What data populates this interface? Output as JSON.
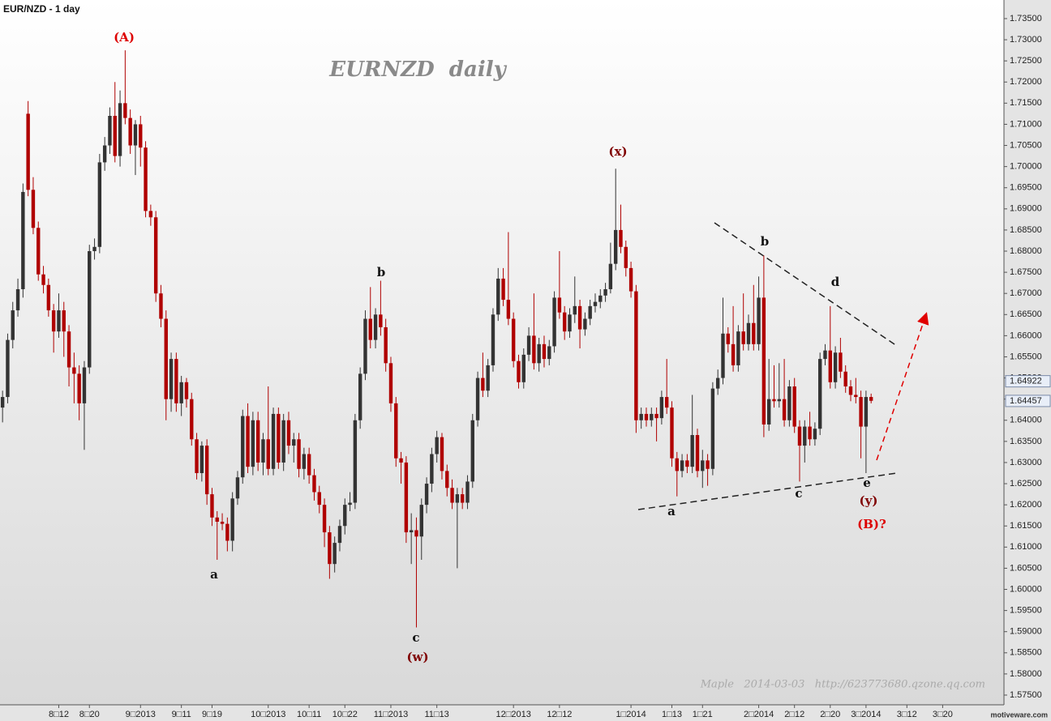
{
  "chart_data": {
    "type": "candlestick",
    "title": "EUR/NZD - 1 day",
    "annotations": [
      "EURNZD  daily",
      "(A)",
      "(x)",
      "b",
      "a",
      "c",
      "(w)",
      "b",
      "d",
      "a",
      "c",
      "e",
      "(y)",
      "(B)?"
    ],
    "footer": "Maple   2014-03-03   http://623773680.qzone.qq.com",
    "brand": "motiveware.com",
    "up_color": "#333333",
    "down_color": "#b00000",
    "xlim": [
      -0.5,
      196
    ],
    "xticks": [
      {
        "value": 11,
        "label": "8□12"
      },
      {
        "value": 17,
        "label": "8□20"
      },
      {
        "value": 27,
        "label": "9□2013"
      },
      {
        "value": 35,
        "label": "9□11"
      },
      {
        "value": 41,
        "label": "9□19"
      },
      {
        "value": 52,
        "label": "10□2013"
      },
      {
        "value": 60,
        "label": "10□11"
      },
      {
        "value": 67,
        "label": "10□22"
      },
      {
        "value": 76,
        "label": "11□2013"
      },
      {
        "value": 85,
        "label": "11□13"
      },
      {
        "value": 100,
        "label": "12□2013"
      },
      {
        "value": 109,
        "label": "12□12"
      },
      {
        "value": 123,
        "label": "1□2014"
      },
      {
        "value": 131,
        "label": "1□13"
      },
      {
        "value": 137,
        "label": "1□21"
      },
      {
        "value": 148,
        "label": "2□2014"
      },
      {
        "value": 155,
        "label": "2□12"
      },
      {
        "value": 162,
        "label": "2□20"
      },
      {
        "value": 169,
        "label": "3□2014"
      },
      {
        "value": 177,
        "label": "3□12"
      },
      {
        "value": 184,
        "label": "3□20"
      }
    ],
    "ylim": [
      1.5727,
      1.7394
    ],
    "yticks": [
      {
        "value": 1.575,
        "label": "1.57500"
      },
      {
        "value": 1.58,
        "label": "1.58000"
      },
      {
        "value": 1.585,
        "label": "1.58500"
      },
      {
        "value": 1.59,
        "label": "1.59000"
      },
      {
        "value": 1.595,
        "label": "1.59500"
      },
      {
        "value": 1.6,
        "label": "1.60000"
      },
      {
        "value": 1.605,
        "label": "1.60500"
      },
      {
        "value": 1.61,
        "label": "1.61000"
      },
      {
        "value": 1.615,
        "label": "1.61500"
      },
      {
        "value": 1.62,
        "label": "1.62000"
      },
      {
        "value": 1.625,
        "label": "1.62500"
      },
      {
        "value": 1.63,
        "label": "1.63000"
      },
      {
        "value": 1.635,
        "label": "1.63500"
      },
      {
        "value": 1.64,
        "label": "1.64000"
      },
      {
        "value": 1.645,
        "label": "1.64500"
      },
      {
        "value": 1.65,
        "label": "1.65000"
      },
      {
        "value": 1.655,
        "label": "1.65500"
      },
      {
        "value": 1.66,
        "label": "1.66000"
      },
      {
        "value": 1.665,
        "label": "1.66500"
      },
      {
        "value": 1.67,
        "label": "1.67000"
      },
      {
        "value": 1.675,
        "label": "1.67500"
      },
      {
        "value": 1.68,
        "label": "1.68000"
      },
      {
        "value": 1.685,
        "label": "1.68500"
      },
      {
        "value": 1.69,
        "label": "1.69000"
      },
      {
        "value": 1.695,
        "label": "1.69500"
      },
      {
        "value": 1.7,
        "label": "1.70000"
      },
      {
        "value": 1.705,
        "label": "1.70500"
      },
      {
        "value": 1.71,
        "label": "1.71000"
      },
      {
        "value": 1.715,
        "label": "1.71500"
      },
      {
        "value": 1.72,
        "label": "1.72000"
      },
      {
        "value": 1.725,
        "label": "1.72500"
      },
      {
        "value": 1.73,
        "label": "1.73000"
      },
      {
        "value": 1.735,
        "label": "1.73500"
      }
    ],
    "price_markers": [
      {
        "value": 1.64922,
        "label": "1.64922"
      },
      {
        "value": 1.64457,
        "label": "1.64457"
      }
    ],
    "ohlc": [
      [
        1.643,
        1.647,
        1.6395,
        1.6455
      ],
      [
        1.6455,
        1.6605,
        1.644,
        1.659
      ],
      [
        1.659,
        1.668,
        1.657,
        1.666
      ],
      [
        1.666,
        1.6735,
        1.6645,
        1.671
      ],
      [
        1.671,
        1.696,
        1.669,
        1.694
      ],
      [
        1.7125,
        1.7155,
        1.693,
        1.6945
      ],
      [
        1.6945,
        1.6975,
        1.684,
        1.6855
      ],
      [
        1.6855,
        1.687,
        1.673,
        1.6745
      ],
      [
        1.6745,
        1.6765,
        1.67,
        1.672
      ],
      [
        1.672,
        1.6735,
        1.6645,
        1.666
      ],
      [
        1.666,
        1.6675,
        1.656,
        1.661
      ],
      [
        1.661,
        1.67,
        1.6595,
        1.666
      ],
      [
        1.666,
        1.668,
        1.655,
        1.661
      ],
      [
        1.661,
        1.6625,
        1.648,
        1.6525
      ],
      [
        1.6525,
        1.656,
        1.644,
        1.651
      ],
      [
        1.651,
        1.653,
        1.64,
        1.644
      ],
      [
        1.644,
        1.654,
        1.633,
        1.6525
      ],
      [
        1.6525,
        1.6815,
        1.651,
        1.68
      ],
      [
        1.68,
        1.683,
        1.678,
        1.681
      ],
      [
        1.681,
        1.703,
        1.6795,
        1.701
      ],
      [
        1.701,
        1.707,
        1.699,
        1.705
      ],
      [
        1.705,
        1.714,
        1.703,
        1.712
      ],
      [
        1.712,
        1.72,
        1.701,
        1.7025
      ],
      [
        1.7025,
        1.718,
        1.7,
        1.715
      ],
      [
        1.715,
        1.7275,
        1.71,
        1.7115
      ],
      [
        1.7115,
        1.7135,
        1.703,
        1.705
      ],
      [
        1.705,
        1.711,
        1.698,
        1.71
      ],
      [
        1.71,
        1.712,
        1.7,
        1.7045
      ],
      [
        1.7045,
        1.706,
        1.688,
        1.6895
      ],
      [
        1.6895,
        1.691,
        1.686,
        1.688
      ],
      [
        1.688,
        1.6895,
        1.668,
        1.67
      ],
      [
        1.67,
        1.672,
        1.662,
        1.664
      ],
      [
        1.664,
        1.666,
        1.64,
        1.645
      ],
      [
        1.645,
        1.656,
        1.642,
        1.6545
      ],
      [
        1.6545,
        1.656,
        1.642,
        1.644
      ],
      [
        1.644,
        1.6505,
        1.641,
        1.649
      ],
      [
        1.649,
        1.65,
        1.643,
        1.645
      ],
      [
        1.645,
        1.6465,
        1.634,
        1.6355
      ],
      [
        1.6355,
        1.637,
        1.626,
        1.6275
      ],
      [
        1.6275,
        1.635,
        1.6255,
        1.634
      ],
      [
        1.634,
        1.6355,
        1.62,
        1.6225
      ],
      [
        1.6225,
        1.624,
        1.615,
        1.617
      ],
      [
        1.617,
        1.6185,
        1.607,
        1.616
      ],
      [
        1.616,
        1.618,
        1.614,
        1.6155
      ],
      [
        1.6155,
        1.617,
        1.609,
        1.6115
      ],
      [
        1.6115,
        1.623,
        1.609,
        1.6215
      ],
      [
        1.6215,
        1.628,
        1.62,
        1.6265
      ],
      [
        1.6265,
        1.6425,
        1.625,
        1.641
      ],
      [
        1.641,
        1.644,
        1.6275,
        1.629
      ],
      [
        1.629,
        1.642,
        1.627,
        1.64
      ],
      [
        1.64,
        1.642,
        1.628,
        1.63
      ],
      [
        1.63,
        1.637,
        1.627,
        1.6355
      ],
      [
        1.6355,
        1.648,
        1.627,
        1.6285
      ],
      [
        1.6285,
        1.643,
        1.627,
        1.6415
      ],
      [
        1.6415,
        1.643,
        1.6285,
        1.63
      ],
      [
        1.63,
        1.6415,
        1.628,
        1.64
      ],
      [
        1.64,
        1.642,
        1.632,
        1.634
      ],
      [
        1.634,
        1.637,
        1.63,
        1.6355
      ],
      [
        1.6355,
        1.637,
        1.6265,
        1.6285
      ],
      [
        1.6285,
        1.6335,
        1.626,
        1.632
      ],
      [
        1.632,
        1.6335,
        1.625,
        1.627
      ],
      [
        1.627,
        1.6285,
        1.621,
        1.623
      ],
      [
        1.623,
        1.6245,
        1.618,
        1.62
      ],
      [
        1.62,
        1.6215,
        1.61,
        1.6135
      ],
      [
        1.6135,
        1.615,
        1.6025,
        1.606
      ],
      [
        1.606,
        1.6125,
        1.604,
        1.611
      ],
      [
        1.611,
        1.6165,
        1.609,
        1.615
      ],
      [
        1.615,
        1.6215,
        1.613,
        1.62
      ],
      [
        1.62,
        1.623,
        1.6185,
        1.6205
      ],
      [
        1.6205,
        1.6415,
        1.619,
        1.64
      ],
      [
        1.64,
        1.6525,
        1.638,
        1.651
      ],
      [
        1.651,
        1.666,
        1.6495,
        1.664
      ],
      [
        1.664,
        1.6715,
        1.657,
        1.659
      ],
      [
        1.659,
        1.6665,
        1.657,
        1.665
      ],
      [
        1.665,
        1.673,
        1.66,
        1.662
      ],
      [
        1.662,
        1.664,
        1.6515,
        1.6535
      ],
      [
        1.6535,
        1.655,
        1.642,
        1.644
      ],
      [
        1.644,
        1.6455,
        1.629,
        1.631
      ],
      [
        1.631,
        1.6325,
        1.625,
        1.63
      ],
      [
        1.63,
        1.6315,
        1.611,
        1.6135
      ],
      [
        1.6135,
        1.618,
        1.606,
        1.614
      ],
      [
        1.614,
        1.617,
        1.591,
        1.6125
      ],
      [
        1.6125,
        1.6215,
        1.607,
        1.62
      ],
      [
        1.62,
        1.6265,
        1.618,
        1.625
      ],
      [
        1.625,
        1.6335,
        1.623,
        1.632
      ],
      [
        1.632,
        1.6375,
        1.63,
        1.636
      ],
      [
        1.636,
        1.637,
        1.626,
        1.628
      ],
      [
        1.628,
        1.6295,
        1.622,
        1.624
      ],
      [
        1.624,
        1.626,
        1.619,
        1.6205
      ],
      [
        1.6205,
        1.624,
        1.605,
        1.6225
      ],
      [
        1.6225,
        1.624,
        1.619,
        1.6205
      ],
      [
        1.6205,
        1.627,
        1.619,
        1.6255
      ],
      [
        1.6255,
        1.6415,
        1.624,
        1.64
      ],
      [
        1.64,
        1.6515,
        1.6385,
        1.65
      ],
      [
        1.65,
        1.656,
        1.6455,
        1.647
      ],
      [
        1.647,
        1.6545,
        1.6455,
        1.653
      ],
      [
        1.653,
        1.6665,
        1.6515,
        1.665
      ],
      [
        1.665,
        1.676,
        1.6635,
        1.6735
      ],
      [
        1.6735,
        1.676,
        1.667,
        1.6685
      ],
      [
        1.6685,
        1.6845,
        1.6625,
        1.664
      ],
      [
        1.664,
        1.6655,
        1.6525,
        1.654
      ],
      [
        1.654,
        1.6555,
        1.6475,
        1.649
      ],
      [
        1.649,
        1.657,
        1.6475,
        1.6555
      ],
      [
        1.6555,
        1.662,
        1.654,
        1.66
      ],
      [
        1.66,
        1.67,
        1.652,
        1.6535
      ],
      [
        1.6535,
        1.6595,
        1.6515,
        1.658
      ],
      [
        1.658,
        1.66,
        1.6525,
        1.6545
      ],
      [
        1.6545,
        1.659,
        1.653,
        1.6575
      ],
      [
        1.6575,
        1.6705,
        1.656,
        1.669
      ],
      [
        1.669,
        1.68,
        1.664,
        1.6655
      ],
      [
        1.6655,
        1.667,
        1.659,
        1.661
      ],
      [
        1.661,
        1.6665,
        1.6595,
        1.665
      ],
      [
        1.665,
        1.674,
        1.663,
        1.667
      ],
      [
        1.667,
        1.6685,
        1.657,
        1.6615
      ],
      [
        1.6615,
        1.6655,
        1.66,
        1.664
      ],
      [
        1.664,
        1.6685,
        1.6625,
        1.667
      ],
      [
        1.667,
        1.67,
        1.6655,
        1.668
      ],
      [
        1.668,
        1.671,
        1.6665,
        1.6695
      ],
      [
        1.6695,
        1.6725,
        1.668,
        1.671
      ],
      [
        1.671,
        1.682,
        1.67,
        1.677
      ],
      [
        1.677,
        1.6995,
        1.6755,
        1.685
      ],
      [
        1.685,
        1.691,
        1.6795,
        1.681
      ],
      [
        1.681,
        1.6825,
        1.674,
        1.676
      ],
      [
        1.676,
        1.6775,
        1.669,
        1.6705
      ],
      [
        1.6705,
        1.672,
        1.637,
        1.64
      ],
      [
        1.64,
        1.643,
        1.638,
        1.6415
      ],
      [
        1.6415,
        1.643,
        1.6385,
        1.64
      ],
      [
        1.64,
        1.643,
        1.6385,
        1.6415
      ],
      [
        1.6415,
        1.643,
        1.635,
        1.6405
      ],
      [
        1.6405,
        1.647,
        1.639,
        1.6455
      ],
      [
        1.6455,
        1.6545,
        1.6415,
        1.643
      ],
      [
        1.643,
        1.6445,
        1.629,
        1.631
      ],
      [
        1.631,
        1.6325,
        1.622,
        1.628
      ],
      [
        1.628,
        1.632,
        1.6265,
        1.6305
      ],
      [
        1.6305,
        1.632,
        1.6275,
        1.629
      ],
      [
        1.629,
        1.646,
        1.6275,
        1.6365
      ],
      [
        1.6365,
        1.638,
        1.6265,
        1.628
      ],
      [
        1.628,
        1.633,
        1.624,
        1.6305
      ],
      [
        1.6305,
        1.632,
        1.6245,
        1.6285
      ],
      [
        1.6285,
        1.649,
        1.627,
        1.6475
      ],
      [
        1.6475,
        1.652,
        1.646,
        1.65
      ],
      [
        1.65,
        1.669,
        1.6485,
        1.6605
      ],
      [
        1.6605,
        1.662,
        1.656,
        1.658
      ],
      [
        1.658,
        1.667,
        1.6515,
        1.653
      ],
      [
        1.653,
        1.6625,
        1.6515,
        1.661
      ],
      [
        1.661,
        1.67,
        1.6565,
        1.658
      ],
      [
        1.658,
        1.665,
        1.6565,
        1.663
      ],
      [
        1.663,
        1.672,
        1.6565,
        1.658
      ],
      [
        1.658,
        1.674,
        1.6565,
        1.669
      ],
      [
        1.669,
        1.679,
        1.636,
        1.639
      ],
      [
        1.639,
        1.6545,
        1.6375,
        1.645
      ],
      [
        1.645,
        1.653,
        1.643,
        1.6445
      ],
      [
        1.6445,
        1.6535,
        1.643,
        1.645
      ],
      [
        1.645,
        1.6545,
        1.6385,
        1.64
      ],
      [
        1.64,
        1.6495,
        1.6385,
        1.648
      ],
      [
        1.648,
        1.65,
        1.637,
        1.6385
      ],
      [
        1.6385,
        1.64,
        1.6255,
        1.634
      ],
      [
        1.634,
        1.64,
        1.63,
        1.6385
      ],
      [
        1.6385,
        1.642,
        1.634,
        1.6355
      ],
      [
        1.6355,
        1.6395,
        1.634,
        1.638
      ],
      [
        1.638,
        1.656,
        1.6365,
        1.6545
      ],
      [
        1.6545,
        1.658,
        1.653,
        1.6565
      ],
      [
        1.6565,
        1.667,
        1.6475,
        1.649
      ],
      [
        1.649,
        1.6575,
        1.6475,
        1.656
      ],
      [
        1.656,
        1.6595,
        1.65,
        1.6515
      ],
      [
        1.6515,
        1.653,
        1.6465,
        1.648
      ],
      [
        1.648,
        1.6495,
        1.6445,
        1.646
      ],
      [
        1.646,
        1.65,
        1.644,
        1.6455
      ],
      [
        1.6455,
        1.647,
        1.631,
        1.6385
      ],
      [
        1.6385,
        1.647,
        1.6275,
        1.6455
      ],
      [
        1.6455,
        1.6463,
        1.644,
        1.6446
      ]
    ]
  }
}
